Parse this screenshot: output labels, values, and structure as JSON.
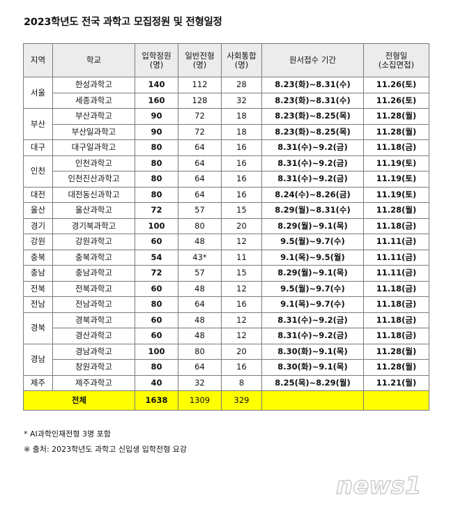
{
  "title": "2023학년도 전국 과학고 모집정원 및 전형일정",
  "headers": {
    "region": "지역",
    "school": "학교",
    "quota": [
      "입학정원",
      "(명)"
    ],
    "general": [
      "일반전형",
      "(명)"
    ],
    "social": [
      "사회통합",
      "(명)"
    ],
    "application": "원서접수 기간",
    "exam": [
      "전형일",
      "(소집면접)"
    ]
  },
  "regions": [
    {
      "name": "서울",
      "schools": [
        {
          "school": "한성과학고",
          "quota": "140",
          "general": "112",
          "social": "28",
          "application": "8.23(화)~8.31(수)",
          "exam": "11.26(토)"
        },
        {
          "school": "세종과학고",
          "quota": "160",
          "general": "128",
          "social": "32",
          "application": "8.23(화)~8.31(수)",
          "exam": "11.26(토)"
        }
      ]
    },
    {
      "name": "부산",
      "schools": [
        {
          "school": "부산과학고",
          "quota": "90",
          "general": "72",
          "social": "18",
          "application": "8.23(화)~8.25(목)",
          "exam": "11.28(월)"
        },
        {
          "school": "부산일과학고",
          "quota": "90",
          "general": "72",
          "social": "18",
          "application": "8.23(화)~8.25(목)",
          "exam": "11.28(월)"
        }
      ]
    },
    {
      "name": "대구",
      "schools": [
        {
          "school": "대구일과학고",
          "quota": "80",
          "general": "64",
          "social": "16",
          "application": "8.31(수)~9.2(금)",
          "exam": "11.18(금)"
        }
      ]
    },
    {
      "name": "인천",
      "schools": [
        {
          "school": "인천과학고",
          "quota": "80",
          "general": "64",
          "social": "16",
          "application": "8.31(수)~9.2(금)",
          "exam": "11.19(토)"
        },
        {
          "school": "인천진산과학고",
          "quota": "80",
          "general": "64",
          "social": "16",
          "application": "8.31(수)~9.2(금)",
          "exam": "11.19(토)"
        }
      ]
    },
    {
      "name": "대전",
      "schools": [
        {
          "school": "대전동신과학고",
          "quota": "80",
          "general": "64",
          "social": "16",
          "application": "8.24(수)~8.26(금)",
          "exam": "11.19(토)"
        }
      ]
    },
    {
      "name": "울산",
      "schools": [
        {
          "school": "울산과학고",
          "quota": "72",
          "general": "57",
          "social": "15",
          "application": "8.29(월)~8.31(수)",
          "exam": "11.28(월)"
        }
      ]
    },
    {
      "name": "경기",
      "schools": [
        {
          "school": "경기북과학고",
          "quota": "100",
          "general": "80",
          "social": "20",
          "application": "8.29(월)~9.1(목)",
          "exam": "11.18(금)"
        }
      ]
    },
    {
      "name": "강원",
      "schools": [
        {
          "school": "강원과학고",
          "quota": "60",
          "general": "48",
          "social": "12",
          "application": "9.5(월)~9.7(수)",
          "exam": "11.11(금)"
        }
      ]
    },
    {
      "name": "충북",
      "schools": [
        {
          "school": "충북과학고",
          "quota": "54",
          "general": "43*",
          "social": "11",
          "application": "9.1(목)~9.5(월)",
          "exam": "11.11(금)"
        }
      ]
    },
    {
      "name": "충남",
      "schools": [
        {
          "school": "충남과학고",
          "quota": "72",
          "general": "57",
          "social": "15",
          "application": "8.29(월)~9.1(목)",
          "exam": "11.11(금)"
        }
      ]
    },
    {
      "name": "전북",
      "schools": [
        {
          "school": "전북과학고",
          "quota": "60",
          "general": "48",
          "social": "12",
          "application": "9.5(월)~9.7(수)",
          "exam": "11.18(금)"
        }
      ]
    },
    {
      "name": "전남",
      "schools": [
        {
          "school": "전남과학고",
          "quota": "80",
          "general": "64",
          "social": "16",
          "application": "9.1(목)~9.7(수)",
          "exam": "11.18(금)"
        }
      ]
    },
    {
      "name": "경북",
      "schools": [
        {
          "school": "경북과학고",
          "quota": "60",
          "general": "48",
          "social": "12",
          "application": "8.31(수)~9.2(금)",
          "exam": "11.18(금)"
        },
        {
          "school": "경산과학고",
          "quota": "60",
          "general": "48",
          "social": "12",
          "application": "8.31(수)~9.2(금)",
          "exam": "11.18(금)"
        }
      ]
    },
    {
      "name": "경남",
      "schools": [
        {
          "school": "경남과학고",
          "quota": "100",
          "general": "80",
          "social": "20",
          "application": "8.30(화)~9.1(목)",
          "exam": "11.28(월)"
        },
        {
          "school": "창원과학고",
          "quota": "80",
          "general": "64",
          "social": "16",
          "application": "8.30(화)~9.1(목)",
          "exam": "11.28(월)"
        }
      ]
    },
    {
      "name": "제주",
      "schools": [
        {
          "school": "제주과학고",
          "quota": "40",
          "general": "32",
          "social": "8",
          "application": "8.25(목)~8.29(월)",
          "exam": "11.21(월)"
        }
      ]
    }
  ],
  "total": {
    "label": "전체",
    "quota": "1638",
    "general": "1309",
    "social": "329"
  },
  "notes": [
    "* AI과학인재전형 3명 포함",
    "※ 출처: 2023학년도 과학고 신입생 입학전형 요강"
  ],
  "logo": {
    "text": "news1",
    "icon": "news1-logo"
  },
  "colors": {
    "header_bg": "#ececec",
    "total_bg": "#ffff00",
    "border": "#7a7a7a"
  }
}
